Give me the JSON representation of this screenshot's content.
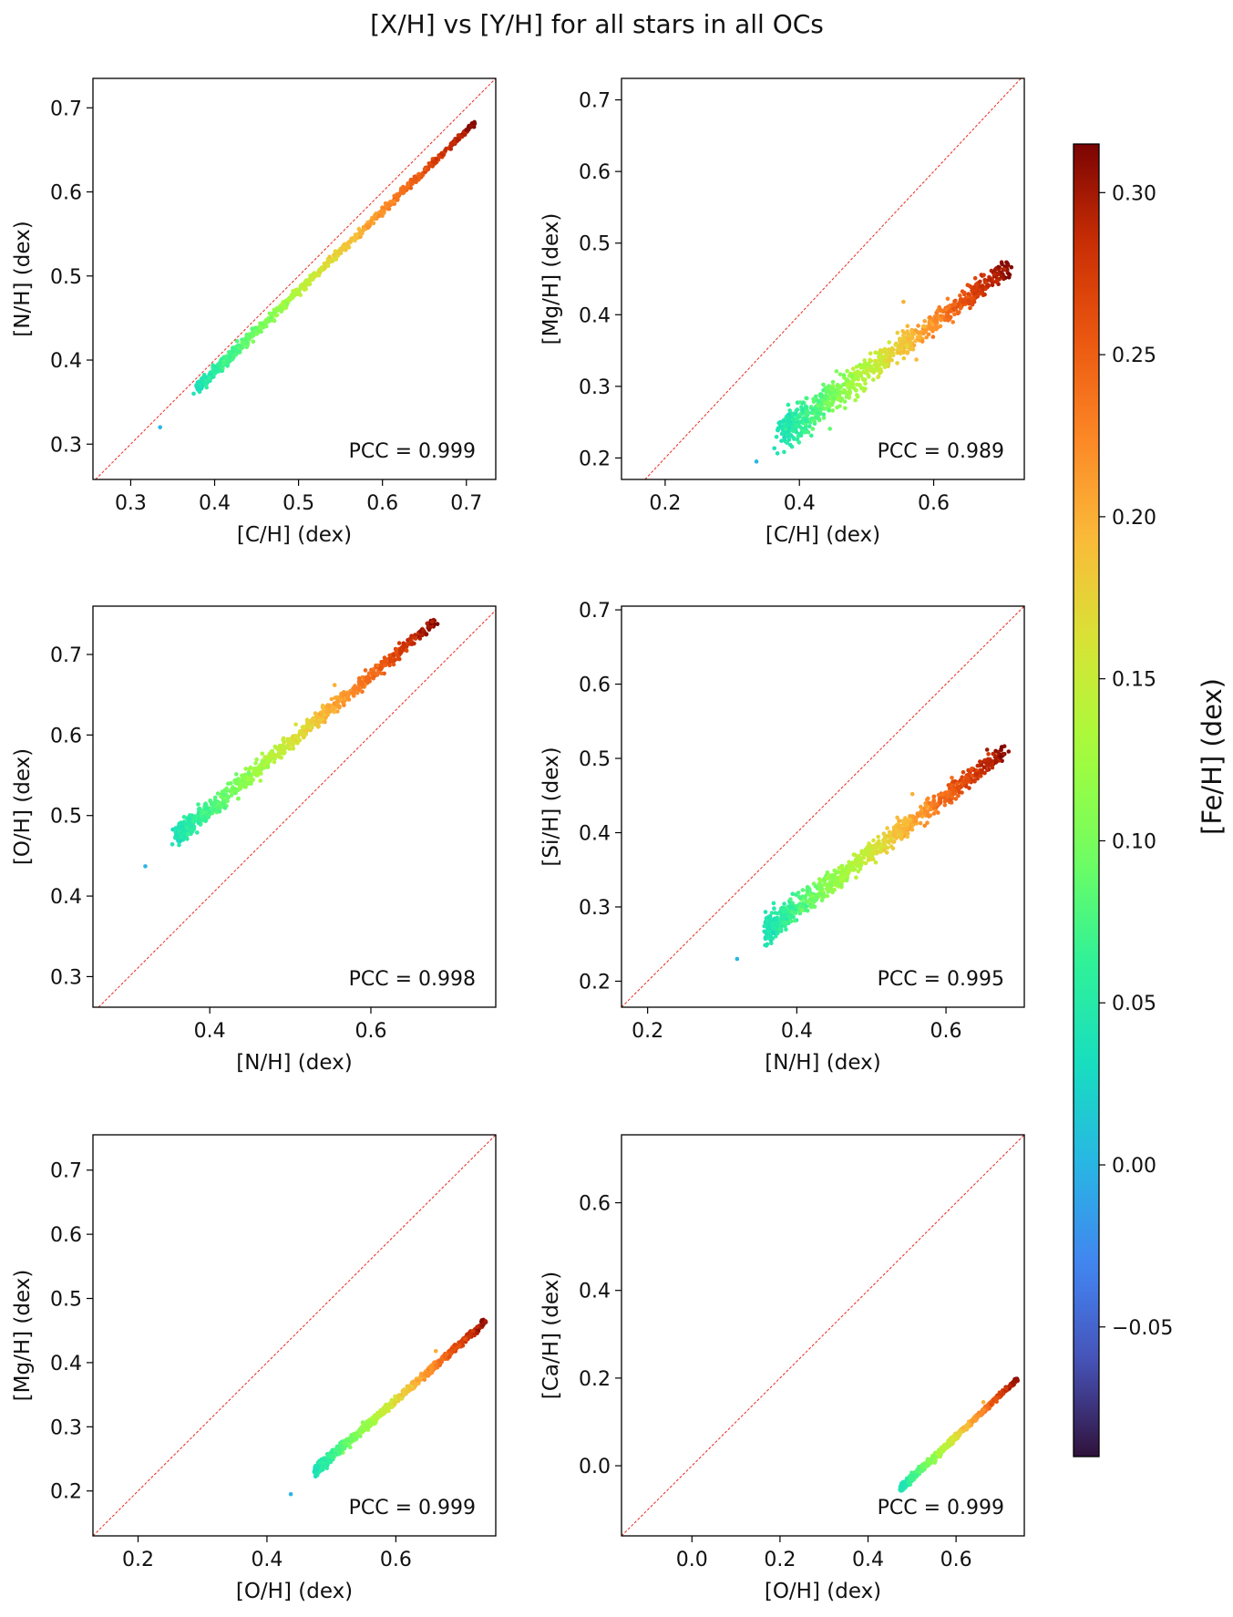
{
  "figure": {
    "title": "[X/H] vs [Y/H] for all stars in all OCs",
    "colorbar": {
      "label": "[Fe/H] (dex)",
      "range": [
        -0.09,
        0.315
      ],
      "ticks": [
        -0.05,
        0.0,
        0.05,
        0.1,
        0.15,
        0.2,
        0.25,
        0.3
      ],
      "tick_labels": [
        "−0.05",
        "0.00",
        "0.05",
        "0.10",
        "0.15",
        "0.20",
        "0.25",
        "0.30"
      ],
      "colormap": "turbo"
    }
  },
  "chart_data": [
    {
      "type": "scatter",
      "id": "cn",
      "xlabel": "[C/H] (dex)",
      "ylabel": "[N/H] (dex)",
      "xlim": [
        0.255,
        0.735
      ],
      "ylim": [
        0.258,
        0.735
      ],
      "xticks": [
        0.3,
        0.4,
        0.5,
        0.6,
        0.7
      ],
      "xtick_labels": [
        "0.3",
        "0.4",
        "0.5",
        "0.6",
        "0.7"
      ],
      "yticks": [
        0.3,
        0.4,
        0.5,
        0.6,
        0.7
      ],
      "ytick_labels": [
        "0.3",
        "0.4",
        "0.5",
        "0.6",
        "0.7"
      ],
      "annotation": "PCC = 0.999",
      "trend": {
        "x0": 0.38,
        "y0": 0.368,
        "x1": 0.71,
        "y1": 0.682,
        "fe0": 0.04,
        "fe1": 0.31,
        "scatter": 0.003
      },
      "outliers": [
        {
          "x": 0.335,
          "y": 0.32,
          "fe": 0.0
        },
        {
          "x": 0.375,
          "y": 0.36,
          "fe": 0.04
        }
      ]
    },
    {
      "type": "scatter",
      "id": "cmg",
      "xlabel": "[C/H] (dex)",
      "ylabel": "[Mg/H] (dex)",
      "xlim": [
        0.135,
        0.735
      ],
      "ylim": [
        0.17,
        0.73
      ],
      "xticks": [
        0.2,
        0.4,
        0.6
      ],
      "xtick_labels": [
        "0.2",
        "0.4",
        "0.6"
      ],
      "yticks": [
        0.2,
        0.3,
        0.4,
        0.5,
        0.6,
        0.7
      ],
      "ytick_labels": [
        "0.2",
        "0.3",
        "0.4",
        "0.5",
        "0.6",
        "0.7"
      ],
      "annotation": "PCC = 0.989",
      "trend": {
        "x0": 0.375,
        "y0": 0.235,
        "x1": 0.71,
        "y1": 0.465,
        "fe0": 0.04,
        "fe1": 0.31,
        "scatter": 0.012
      },
      "outliers": [
        {
          "x": 0.336,
          "y": 0.195,
          "fe": 0.0
        },
        {
          "x": 0.555,
          "y": 0.418,
          "fe": 0.2
        }
      ]
    },
    {
      "type": "scatter",
      "id": "no",
      "xlabel": "[N/H] (dex)",
      "ylabel": "[O/H] (dex)",
      "xlim": [
        0.255,
        0.755
      ],
      "ylim": [
        0.262,
        0.76
      ],
      "xticks": [
        0.4,
        0.6
      ],
      "xtick_labels": [
        "0.4",
        "0.6"
      ],
      "yticks": [
        0.3,
        0.4,
        0.5,
        0.6,
        0.7
      ],
      "ytick_labels": [
        "0.3",
        "0.4",
        "0.5",
        "0.6",
        "0.7"
      ],
      "annotation": "PCC = 0.998",
      "trend": {
        "x0": 0.36,
        "y0": 0.475,
        "x1": 0.68,
        "y1": 0.74,
        "fe0": 0.04,
        "fe1": 0.31,
        "scatter": 0.006
      },
      "outliers": [
        {
          "x": 0.32,
          "y": 0.437,
          "fe": 0.0
        },
        {
          "x": 0.555,
          "y": 0.662,
          "fe": 0.2
        }
      ]
    },
    {
      "type": "scatter",
      "id": "nsi",
      "xlabel": "[N/H] (dex)",
      "ylabel": "[Si/H] (dex)",
      "xlim": [
        0.165,
        0.705
      ],
      "ylim": [
        0.165,
        0.705
      ],
      "xticks": [
        0.2,
        0.4,
        0.6
      ],
      "xtick_labels": [
        "0.2",
        "0.4",
        "0.6"
      ],
      "yticks": [
        0.2,
        0.3,
        0.4,
        0.5,
        0.6,
        0.7
      ],
      "ytick_labels": [
        "0.2",
        "0.3",
        "0.4",
        "0.5",
        "0.6",
        "0.7"
      ],
      "annotation": "PCC = 0.995",
      "trend": {
        "x0": 0.36,
        "y0": 0.268,
        "x1": 0.68,
        "y1": 0.51,
        "fe0": 0.04,
        "fe1": 0.31,
        "scatter": 0.009
      },
      "outliers": [
        {
          "x": 0.32,
          "y": 0.23,
          "fe": 0.0
        },
        {
          "x": 0.555,
          "y": 0.452,
          "fe": 0.2
        }
      ]
    },
    {
      "type": "scatter",
      "id": "omg",
      "xlabel": "[O/H] (dex)",
      "ylabel": "[Mg/H] (dex)",
      "xlim": [
        0.13,
        0.755
      ],
      "ylim": [
        0.13,
        0.755
      ],
      "xticks": [
        0.2,
        0.4,
        0.6
      ],
      "xtick_labels": [
        "0.2",
        "0.4",
        "0.6"
      ],
      "yticks": [
        0.2,
        0.3,
        0.4,
        0.5,
        0.6,
        0.7
      ],
      "ytick_labels": [
        "0.2",
        "0.3",
        "0.4",
        "0.5",
        "0.6",
        "0.7"
      ],
      "annotation": "PCC = 0.999",
      "trend": {
        "x0": 0.475,
        "y0": 0.232,
        "x1": 0.74,
        "y1": 0.465,
        "fe0": 0.04,
        "fe1": 0.31,
        "scatter": 0.004
      },
      "outliers": [
        {
          "x": 0.437,
          "y": 0.195,
          "fe": 0.0
        },
        {
          "x": 0.662,
          "y": 0.418,
          "fe": 0.2
        }
      ]
    },
    {
      "type": "scatter",
      "id": "oca",
      "xlabel": "[O/H] (dex)",
      "ylabel": "[Ca/H] (dex)",
      "xlim": [
        -0.16,
        0.755
      ],
      "ylim": [
        -0.16,
        0.755
      ],
      "xticks": [
        0.0,
        0.2,
        0.4,
        0.6
      ],
      "xtick_labels": [
        "0.0",
        "0.2",
        "0.4",
        "0.6"
      ],
      "yticks": [
        0.0,
        0.2,
        0.4,
        0.6
      ],
      "ytick_labels": [
        "0.0",
        "0.2",
        "0.4",
        "0.6"
      ],
      "annotation": "PCC = 0.999",
      "trend": {
        "x0": 0.475,
        "y0": -0.05,
        "x1": 0.74,
        "y1": 0.198,
        "fe0": 0.04,
        "fe1": 0.31,
        "scatter": 0.004
      },
      "outliers": [
        {
          "x": 0.662,
          "y": 0.145,
          "fe": 0.2
        }
      ]
    }
  ]
}
